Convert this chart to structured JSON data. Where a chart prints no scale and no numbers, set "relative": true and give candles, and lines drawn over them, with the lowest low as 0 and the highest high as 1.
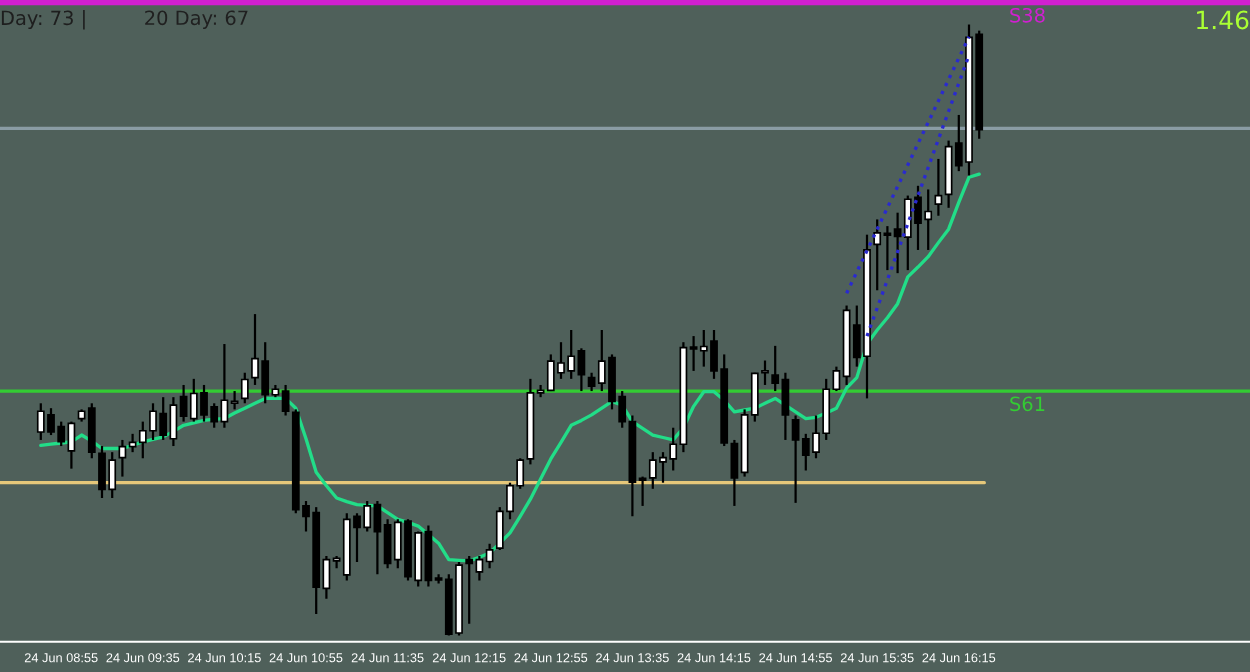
{
  "chart_data": {
    "type": "candlestick",
    "relative": true,
    "categories": [
      null,
      null,
      "24 Jun 08:55",
      null,
      null,
      null,
      null,
      null,
      null,
      null,
      "24 Jun 09:35",
      null,
      null,
      null,
      null,
      null,
      null,
      null,
      "24 Jun 10:15",
      null,
      null,
      null,
      null,
      null,
      null,
      null,
      "24 Jun 10:55",
      null,
      null,
      null,
      null,
      null,
      null,
      null,
      "24 Jun 11:35",
      null,
      null,
      null,
      null,
      null,
      null,
      null,
      "24 Jun 12:15",
      null,
      null,
      null,
      null,
      null,
      null,
      null,
      "24 Jun 12:55",
      null,
      null,
      null,
      null,
      null,
      null,
      null,
      "24 Jun 13:35",
      null,
      null,
      null,
      null,
      null,
      null,
      null,
      "24 Jun 14:15",
      null,
      null,
      null,
      null,
      null,
      null,
      null,
      "24 Jun 14:55",
      null,
      null,
      null,
      null,
      null,
      null,
      null,
      "24 Jun 15:35",
      null,
      null,
      null,
      null,
      null,
      null,
      null,
      "24 Jun 16:15",
      null,
      null
    ],
    "ohlc": [
      [
        0.333,
        0.38,
        0.32,
        0.367
      ],
      [
        0.361,
        0.372,
        0.328,
        0.333
      ],
      [
        0.342,
        0.35,
        0.31,
        0.317
      ],
      [
        0.302,
        0.35,
        0.273,
        0.347
      ],
      [
        0.355,
        0.37,
        0.35,
        0.367
      ],
      [
        0.372,
        0.38,
        0.29,
        0.3
      ],
      [
        0.298,
        0.31,
        0.225,
        0.239
      ],
      [
        0.239,
        0.3,
        0.225,
        0.287
      ],
      [
        0.291,
        0.32,
        0.26,
        0.309
      ],
      [
        0.309,
        0.33,
        0.3,
        0.316
      ],
      [
        0.316,
        0.35,
        0.29,
        0.335
      ],
      [
        0.335,
        0.38,
        0.32,
        0.367
      ],
      [
        0.363,
        0.39,
        0.32,
        0.328
      ],
      [
        0.322,
        0.39,
        0.31,
        0.377
      ],
      [
        0.391,
        0.41,
        0.35,
        0.359
      ],
      [
        0.355,
        0.42,
        0.35,
        0.396
      ],
      [
        0.397,
        0.41,
        0.35,
        0.361
      ],
      [
        0.374,
        0.38,
        0.34,
        0.35
      ],
      [
        0.35,
        0.477,
        0.34,
        0.385
      ],
      [
        0.38,
        0.4,
        0.37,
        0.383
      ],
      [
        0.388,
        0.43,
        0.38,
        0.419
      ],
      [
        0.422,
        0.526,
        0.41,
        0.453
      ],
      [
        0.449,
        0.48,
        0.38,
        0.394
      ],
      [
        0.394,
        0.41,
        0.39,
        0.403
      ],
      [
        0.4,
        0.41,
        0.36,
        0.367
      ],
      [
        0.365,
        0.37,
        0.2,
        0.206
      ],
      [
        0.212,
        0.22,
        0.17,
        0.195
      ],
      [
        0.201,
        0.21,
        0.035,
        0.079
      ],
      [
        0.077,
        0.13,
        0.06,
        0.124
      ],
      [
        0.122,
        0.13,
        0.11,
        0.126
      ],
      [
        0.099,
        0.2,
        0.09,
        0.19
      ],
      [
        0.195,
        0.2,
        0.12,
        0.177
      ],
      [
        0.177,
        0.22,
        0.17,
        0.212
      ],
      [
        0.214,
        0.22,
        0.1,
        0.17
      ],
      [
        0.181,
        0.19,
        0.11,
        0.118
      ],
      [
        0.124,
        0.19,
        0.11,
        0.185
      ],
      [
        0.187,
        0.19,
        0.09,
        0.096
      ],
      [
        0.09,
        0.17,
        0.08,
        0.168
      ],
      [
        0.17,
        0.18,
        0.08,
        0.09
      ],
      [
        0.093,
        0.1,
        0.085,
        0.091
      ],
      [
        0.092,
        0.1,
        0.0,
        0.002
      ],
      [
        0.004,
        0.12,
        0.0,
        0.115
      ],
      [
        0.124,
        0.13,
        0.019,
        0.118
      ],
      [
        0.104,
        0.13,
        0.09,
        0.124
      ],
      [
        0.121,
        0.15,
        0.11,
        0.14
      ],
      [
        0.143,
        0.21,
        0.14,
        0.203
      ],
      [
        0.203,
        0.25,
        0.19,
        0.245
      ],
      [
        0.245,
        0.29,
        0.24,
        0.287
      ],
      [
        0.289,
        0.42,
        0.28,
        0.397
      ],
      [
        0.397,
        0.41,
        0.39,
        0.401
      ],
      [
        0.401,
        0.46,
        0.4,
        0.449
      ],
      [
        0.43,
        0.48,
        0.42,
        0.446
      ],
      [
        0.433,
        0.5,
        0.42,
        0.457
      ],
      [
        0.466,
        0.47,
        0.4,
        0.427
      ],
      [
        0.422,
        0.43,
        0.4,
        0.408
      ],
      [
        0.413,
        0.5,
        0.4,
        0.449
      ],
      [
        0.455,
        0.46,
        0.37,
        0.383
      ],
      [
        0.391,
        0.4,
        0.34,
        0.35
      ],
      [
        0.35,
        0.36,
        0.195,
        0.251
      ],
      [
        0.256,
        0.26,
        0.212,
        0.254
      ],
      [
        0.258,
        0.3,
        0.24,
        0.287
      ],
      [
        0.284,
        0.3,
        0.25,
        0.291
      ],
      [
        0.289,
        0.34,
        0.27,
        0.313
      ],
      [
        0.313,
        0.48,
        0.3,
        0.471
      ],
      [
        0.47,
        0.49,
        0.433,
        0.469
      ],
      [
        0.466,
        0.5,
        0.44,
        0.473
      ],
      [
        0.482,
        0.5,
        0.42,
        0.433
      ],
      [
        0.436,
        0.46,
        0.31,
        0.315
      ],
      [
        0.314,
        0.32,
        0.212,
        0.258
      ],
      [
        0.267,
        0.37,
        0.26,
        0.361
      ],
      [
        0.361,
        0.43,
        0.35,
        0.429
      ],
      [
        0.43,
        0.45,
        0.41,
        0.431
      ],
      [
        0.426,
        0.474,
        0.4,
        0.413
      ],
      [
        0.419,
        0.43,
        0.32,
        0.361
      ],
      [
        0.353,
        0.36,
        0.217,
        0.32
      ],
      [
        0.322,
        0.33,
        0.27,
        0.295
      ],
      [
        0.3,
        0.36,
        0.29,
        0.331
      ],
      [
        0.331,
        0.42,
        0.32,
        0.403
      ],
      [
        0.403,
        0.44,
        0.4,
        0.433
      ],
      [
        0.424,
        0.54,
        0.41,
        0.532
      ],
      [
        0.508,
        0.54,
        0.44,
        0.455
      ],
      [
        0.457,
        0.656,
        0.388,
        0.631
      ],
      [
        0.64,
        0.681,
        0.565,
        0.659
      ],
      [
        0.658,
        0.67,
        0.598,
        0.655
      ],
      [
        0.665,
        0.692,
        0.593,
        0.653
      ],
      [
        0.652,
        0.72,
        0.598,
        0.714
      ],
      [
        0.717,
        0.736,
        0.631,
        0.675
      ],
      [
        0.681,
        0.73,
        0.631,
        0.694
      ],
      [
        0.706,
        0.78,
        0.687,
        0.72
      ],
      [
        0.722,
        0.81,
        0.7,
        0.8
      ],
      [
        0.806,
        0.852,
        0.76,
        0.769
      ],
      [
        0.775,
        1.0,
        0.753,
        0.979
      ],
      [
        0.984,
        0.99,
        0.813,
        0.828
      ]
    ],
    "series": [
      {
        "type": "line",
        "color": "#22dd88",
        "line_style": "solid",
        "values": [
          0.311,
          0.313,
          0.315,
          0.317,
          0.328,
          0.318,
          0.306,
          0.306,
          0.306,
          0.311,
          0.317,
          0.321,
          0.325,
          0.334,
          0.344,
          0.348,
          0.352,
          0.354,
          0.355,
          0.364,
          0.372,
          0.38,
          0.388,
          0.388,
          0.388,
          0.372,
          0.322,
          0.267,
          0.245,
          0.225,
          0.219,
          0.214,
          0.213,
          0.212,
          0.201,
          0.19,
          0.185,
          0.179,
          0.165,
          0.151,
          0.124,
          0.123,
          0.122,
          0.128,
          0.135,
          0.151,
          0.168,
          0.195,
          0.223,
          0.256,
          0.289,
          0.316,
          0.344,
          0.352,
          0.361,
          0.372,
          0.383,
          0.377,
          0.35,
          0.339,
          0.328,
          0.324,
          0.32,
          0.34,
          0.375,
          0.399,
          0.399,
          0.385,
          0.366,
          0.369,
          0.372,
          0.38,
          0.388,
          0.377,
          0.366,
          0.355,
          0.357,
          0.364,
          0.372,
          0.405,
          0.422,
          0.477,
          0.5,
          0.52,
          0.543,
          0.587,
          0.603,
          0.62,
          0.643,
          0.665,
          0.709,
          0.75,
          0.755
        ]
      },
      {
        "type": "line",
        "color": "#2a2ad0",
        "line_style": "dotted",
        "values": [
          null,
          null,
          null,
          null,
          null,
          null,
          null,
          null,
          null,
          null,
          null,
          null,
          null,
          null,
          null,
          null,
          null,
          null,
          null,
          null,
          null,
          null,
          null,
          null,
          null,
          null,
          null,
          null,
          null,
          null,
          null,
          null,
          null,
          null,
          null,
          null,
          null,
          null,
          null,
          null,
          null,
          null,
          null,
          null,
          null,
          null,
          null,
          null,
          null,
          null,
          null,
          null,
          null,
          null,
          null,
          null,
          null,
          null,
          null,
          null,
          null,
          null,
          null,
          null,
          null,
          null,
          null,
          null,
          null,
          null,
          null,
          null,
          null,
          null,
          null,
          null,
          null,
          null,
          null,
          0.56,
          0.595,
          0.63,
          0.665,
          0.7,
          0.735,
          0.77,
          0.805,
          0.84,
          0.875,
          0.91,
          0.945,
          0.98,
          null
        ]
      },
      {
        "type": "line",
        "color": "#2a2ad0",
        "line_style": "dotted",
        "values": [
          null,
          null,
          null,
          null,
          null,
          null,
          null,
          null,
          null,
          null,
          null,
          null,
          null,
          null,
          null,
          null,
          null,
          null,
          null,
          null,
          null,
          null,
          null,
          null,
          null,
          null,
          null,
          null,
          null,
          null,
          null,
          null,
          null,
          null,
          null,
          null,
          null,
          null,
          null,
          null,
          null,
          null,
          null,
          null,
          null,
          null,
          null,
          null,
          null,
          null,
          null,
          null,
          null,
          null,
          null,
          null,
          null,
          null,
          null,
          null,
          null,
          null,
          null,
          null,
          null,
          null,
          null,
          null,
          null,
          null,
          null,
          null,
          null,
          null,
          null,
          null,
          null,
          null,
          null,
          null,
          null,
          0.49,
          0.536,
          0.582,
          0.628,
          0.674,
          0.72,
          0.766,
          0.812,
          0.858,
          0.904,
          0.95,
          null
        ]
      }
    ],
    "ref_lines": [
      {
        "axis": "y",
        "value": 1.036,
        "label": "S38",
        "color": "#d020d0"
      },
      {
        "axis": "y",
        "value": 0.83,
        "color": "#8a9ca4"
      },
      {
        "axis": "y",
        "value": 0.4,
        "label": "S61",
        "color": "#33cc33"
      },
      {
        "axis": "y",
        "value": 0.25,
        "color": "#e6c87a"
      }
    ],
    "annotations": [
      "Day: 73 |",
      "20 Day: 67",
      "1.46"
    ],
    "grid": false,
    "legend": false
  }
}
